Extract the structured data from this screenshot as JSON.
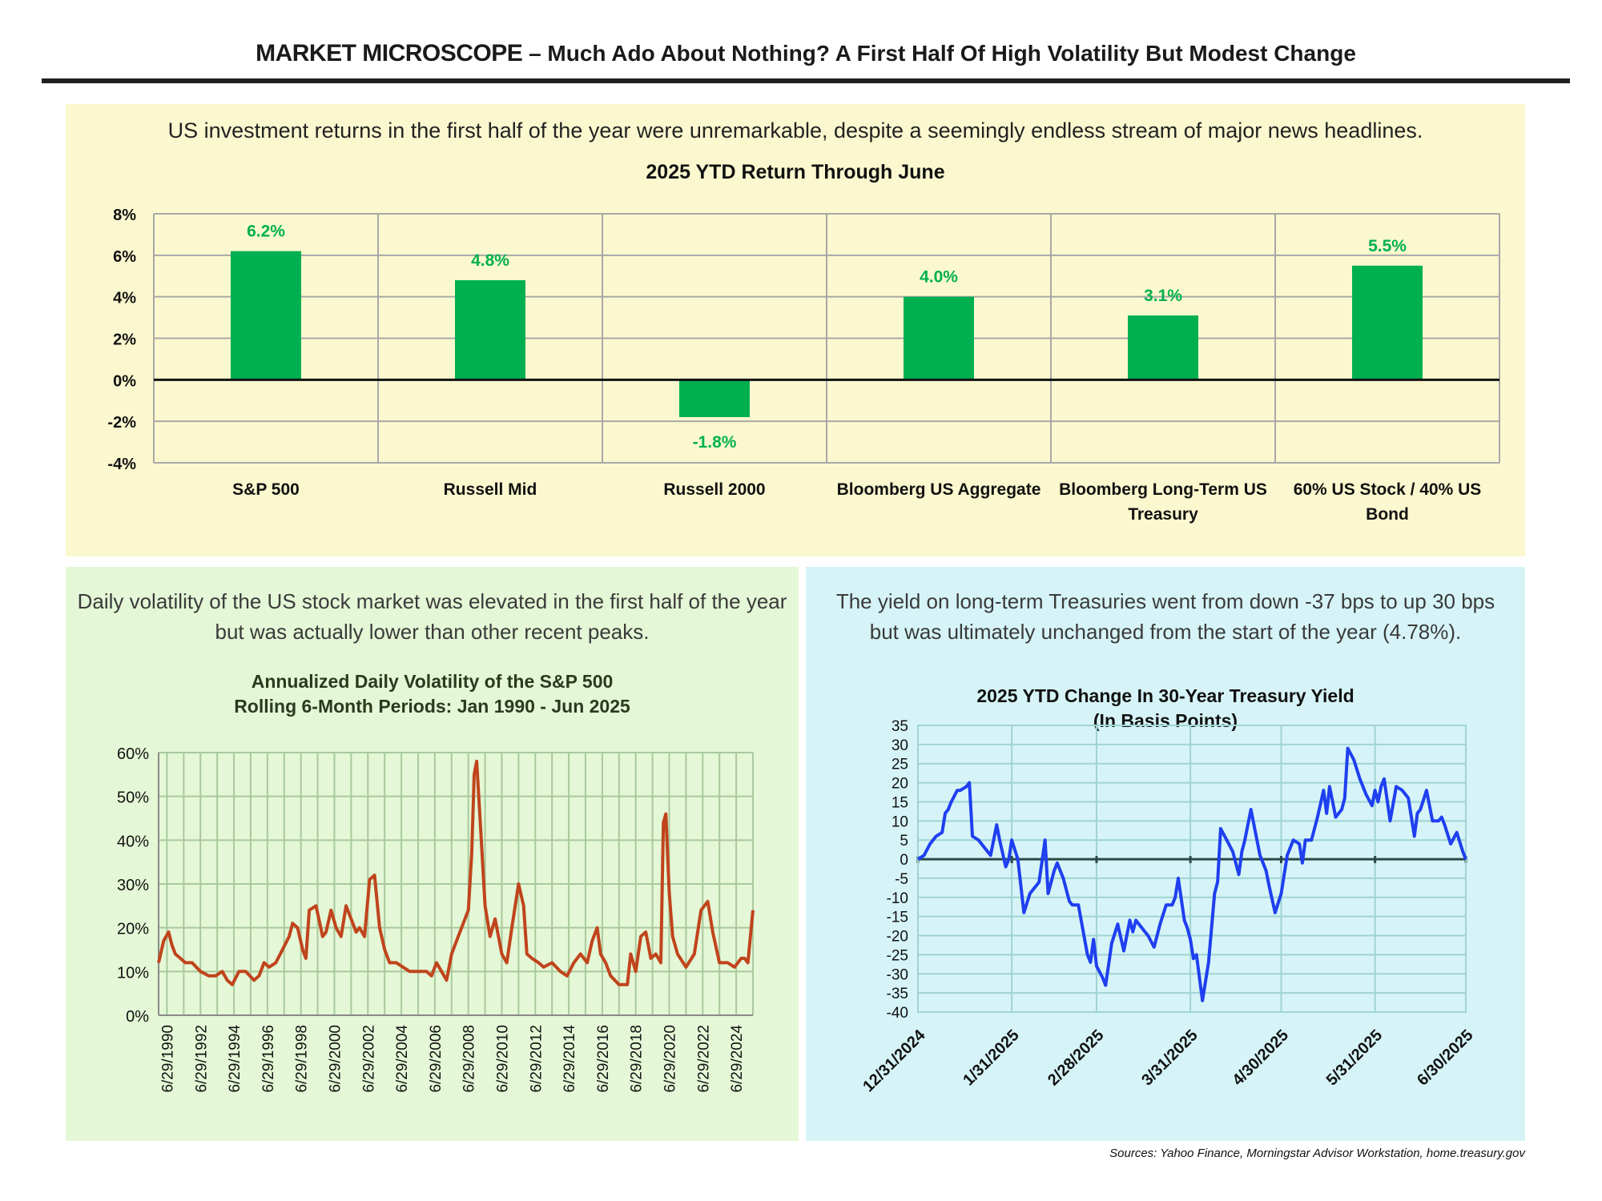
{
  "header": {
    "brand": "MARKET MICROSCOPE",
    "headline": " – Much Ado About Nothing? A First Half Of High Volatility But Modest Change"
  },
  "top_panel": {
    "caption": "US investment returns in the first half of the year were unremarkable, despite a seemingly endless stream of major news headlines."
  },
  "left_panel": {
    "caption": "Daily volatility of the US stock market was elevated in the first half of the year but was actually lower than other recent peaks."
  },
  "right_panel": {
    "caption": "The yield on long-term Treasuries went from down -37 bps to up 30 bps but was ultimately unchanged from the start of the year (4.78%)."
  },
  "sources": "Sources: Yahoo Finance, Morningstar Advisor Workstation, home.treasury.gov",
  "colors": {
    "bar_green": "#00b050",
    "bar_label_green": "#00b050",
    "vol_line": "#c0441c",
    "yield_line": "#1f3ff0",
    "top_bg": "#fbf8cf",
    "left_bg": "#e4f7d6",
    "right_bg": "#d6f4f7"
  },
  "chart_data": [
    {
      "type": "bar",
      "title": "2025 YTD Return Through June",
      "categories": [
        "S&P 500",
        "Russell Mid",
        "Russell 2000",
        "Bloomberg US Aggregate",
        "Bloomberg Long-Term US Treasury",
        "60% US Stock / 40% US Bond"
      ],
      "category_lines": [
        [
          "S&P 500"
        ],
        [
          "Russell Mid"
        ],
        [
          "Russell 2000"
        ],
        [
          "Bloomberg US Aggregate"
        ],
        [
          "Bloomberg Long-Term US",
          "Treasury"
        ],
        [
          "60% US Stock / 40% US",
          "Bond"
        ]
      ],
      "values": [
        6.2,
        4.8,
        -1.8,
        4.0,
        3.1,
        5.5
      ],
      "data_labels": [
        "6.2%",
        "4.8%",
        "-1.8%",
        "4.0%",
        "3.1%",
        "5.5%"
      ],
      "ylim": [
        -4,
        8
      ],
      "yticks": [
        8,
        6,
        4,
        2,
        0,
        -2,
        -4
      ],
      "ytick_labels": [
        "8%",
        "6%",
        "4%",
        "2%",
        "0%",
        "-2%",
        "-4%"
      ],
      "grid": true
    },
    {
      "type": "line",
      "title": "Annualized Daily Volatility of the S&P 500",
      "subtitle": "Rolling 6-Month Periods: Jan 1990 - Jun 2025",
      "x_start": 1990.0,
      "x_end": 2025.5,
      "ylim": [
        0,
        60
      ],
      "ytick_labels": [
        "60%",
        "50%",
        "40%",
        "30%",
        "20%",
        "10%",
        "0%"
      ],
      "yticks": [
        60,
        50,
        40,
        30,
        20,
        10,
        0
      ],
      "xtick_labels": [
        "6/29/1990",
        "6/29/1992",
        "6/29/1994",
        "6/29/1996",
        "6/29/1998",
        "6/29/2000",
        "6/29/2002",
        "6/29/2004",
        "6/29/2006",
        "6/29/2008",
        "6/29/2010",
        "6/29/2012",
        "6/29/2014",
        "6/29/2016",
        "6/29/2018",
        "6/29/2020",
        "6/29/2022",
        "6/29/2024"
      ],
      "x": [
        1990.0,
        1990.3,
        1990.6,
        1990.8,
        1991.0,
        1991.3,
        1991.6,
        1992.0,
        1992.5,
        1993.0,
        1993.4,
        1993.8,
        1994.1,
        1994.4,
        1994.8,
        1995.2,
        1995.7,
        1996.0,
        1996.3,
        1996.6,
        1997.0,
        1997.4,
        1997.8,
        1998.0,
        1998.3,
        1998.6,
        1998.8,
        1999.0,
        1999.4,
        1999.8,
        2000.0,
        2000.3,
        2000.6,
        2000.9,
        2001.2,
        2001.5,
        2001.8,
        2002.0,
        2002.3,
        2002.6,
        2002.9,
        2003.2,
        2003.5,
        2003.8,
        2004.2,
        2004.6,
        2005.0,
        2005.5,
        2006.0,
        2006.3,
        2006.6,
        2006.9,
        2007.2,
        2007.5,
        2007.9,
        2008.2,
        2008.5,
        2008.7,
        2008.85,
        2009.0,
        2009.2,
        2009.5,
        2009.8,
        2010.1,
        2010.5,
        2010.8,
        2011.1,
        2011.5,
        2011.8,
        2012.0,
        2012.3,
        2012.7,
        2013.0,
        2013.5,
        2014.0,
        2014.4,
        2014.8,
        2015.2,
        2015.6,
        2015.9,
        2016.2,
        2016.4,
        2016.7,
        2017.0,
        2017.5,
        2018.0,
        2018.2,
        2018.5,
        2018.8,
        2019.1,
        2019.4,
        2019.7,
        2020.0,
        2020.15,
        2020.3,
        2020.5,
        2020.7,
        2021.0,
        2021.5,
        2022.0,
        2022.4,
        2022.8,
        2023.1,
        2023.5,
        2024.0,
        2024.4,
        2024.8,
        2025.0,
        2025.2,
        2025.5
      ],
      "y": [
        12,
        17,
        19,
        16,
        14,
        13,
        12,
        12,
        10,
        9,
        9,
        10,
        8,
        7,
        10,
        10,
        8,
        9,
        12,
        11,
        12,
        15,
        18,
        21,
        20,
        15,
        13,
        24,
        25,
        18,
        19,
        24,
        20,
        18,
        25,
        22,
        19,
        20,
        18,
        31,
        32,
        20,
        15,
        12,
        12,
        11,
        10,
        10,
        10,
        9,
        12,
        10,
        8,
        14,
        18,
        21,
        24,
        37,
        55,
        58,
        45,
        25,
        18,
        22,
        14,
        12,
        20,
        30,
        25,
        14,
        13,
        12,
        11,
        12,
        10,
        9,
        12,
        14,
        12,
        17,
        20,
        14,
        12,
        9,
        7,
        7,
        14,
        10,
        18,
        19,
        13,
        14,
        12,
        44,
        46,
        28,
        18,
        14,
        11,
        14,
        24,
        26,
        19,
        12,
        12,
        11,
        13,
        13,
        12,
        24
      ]
    },
    {
      "type": "line",
      "title": "2025 YTD Change In 30-Year Treasury Yield",
      "subtitle": "(In Basis Points)",
      "x_start_day": 0,
      "x_end_day": 181,
      "ylim": [
        -40,
        35
      ],
      "yticks": [
        35,
        30,
        25,
        20,
        15,
        10,
        5,
        0,
        -5,
        -10,
        -15,
        -20,
        -25,
        -30,
        -35,
        -40
      ],
      "ytick_labels": [
        "35",
        "30",
        "25",
        "20",
        "15",
        "10",
        "5",
        "0",
        "-5",
        "-10",
        "-15",
        "-20",
        "-25",
        "-30",
        "-35",
        "-40"
      ],
      "xtick_labels": [
        "12/31/2024",
        "1/31/2025",
        "2/28/2025",
        "3/31/2025",
        "4/30/2025",
        "5/31/2025",
        "6/30/2025"
      ],
      "xtick_days": [
        0,
        31,
        59,
        90,
        120,
        151,
        181
      ],
      "x": [
        0,
        2,
        4,
        6,
        8,
        9,
        10,
        11,
        13,
        14,
        16,
        17,
        18,
        20,
        22,
        24,
        26,
        27,
        29,
        30,
        31,
        33,
        35,
        37,
        38,
        40,
        42,
        43,
        44,
        45,
        46,
        48,
        50,
        51,
        53,
        56,
        57,
        58,
        59,
        61,
        62,
        64,
        66,
        68,
        70,
        71,
        72,
        74,
        76,
        78,
        80,
        82,
        84,
        85,
        86,
        88,
        89,
        90,
        91,
        92,
        94,
        96,
        98,
        99,
        100,
        102,
        104,
        106,
        107,
        108,
        110,
        113,
        115,
        116,
        118,
        120,
        122,
        124,
        126,
        127,
        128,
        130,
        132,
        134,
        135,
        136,
        138,
        140,
        141,
        142,
        144,
        146,
        148,
        150,
        151,
        152,
        153,
        154,
        156,
        158,
        160,
        162,
        164,
        165,
        166,
        168,
        170,
        172,
        173,
        174,
        176,
        178,
        180,
        181
      ],
      "y": [
        0,
        1,
        4,
        6,
        7,
        12,
        13,
        15,
        18,
        18,
        19,
        20,
        6,
        5,
        3,
        1,
        9,
        5,
        -2,
        0,
        5,
        0,
        -14,
        -9,
        -8,
        -6,
        5,
        -9,
        -6,
        -3,
        -1,
        -5,
        -11,
        -12,
        -12,
        -25,
        -27,
        -21,
        -28,
        -31,
        -33,
        -22,
        -17,
        -24,
        -16,
        -19,
        -16,
        -18,
        -20,
        -23,
        -17,
        -12,
        -12,
        -10,
        -5,
        -16,
        -18,
        -21,
        -26,
        -25,
        -37,
        -27,
        -9,
        -6,
        8,
        5,
        2,
        -4,
        2,
        5,
        13,
        1,
        -3,
        -7,
        -14,
        -9,
        1,
        5,
        4,
        -1,
        5,
        5,
        11,
        18,
        12,
        19,
        11,
        13,
        16,
        29,
        26,
        21,
        17,
        14,
        18,
        15,
        19,
        21,
        10,
        19,
        18,
        16,
        6,
        12,
        13,
        18,
        10,
        10,
        11,
        9,
        4,
        7,
        2,
        0
      ]
    }
  ]
}
